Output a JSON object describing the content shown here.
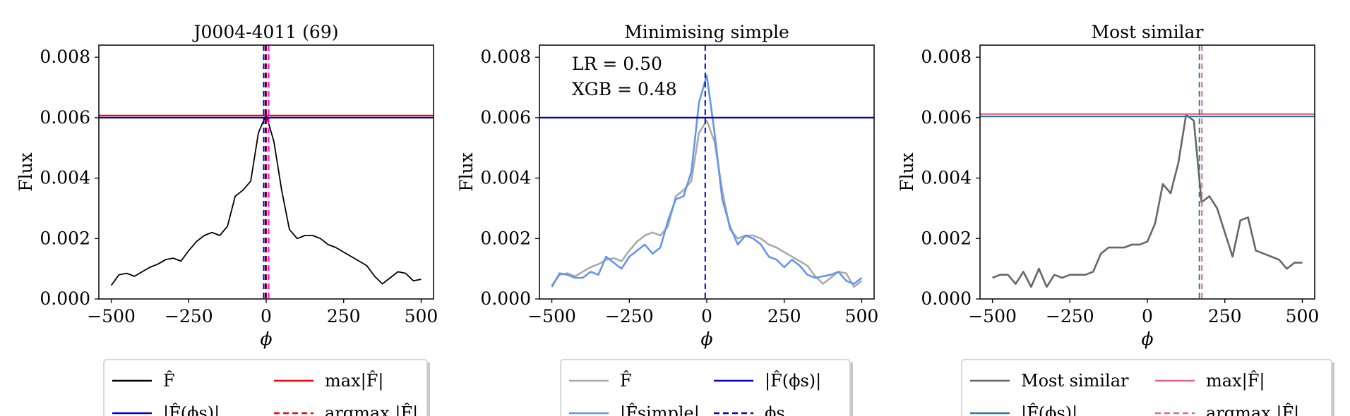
{
  "chart_data": [
    {
      "type": "line",
      "title": "J0004-4011 (69)",
      "xlabel": "ϕ",
      "ylabel": "Flux",
      "xlim": [
        -540,
        540
      ],
      "ylim": [
        0,
        0.0084
      ],
      "xticks": [
        -500,
        -250,
        0,
        250,
        500
      ],
      "xtick_labels": [
        "−500",
        "−250",
        "0",
        "250",
        "500"
      ],
      "yticks": [
        0,
        0.002,
        0.004,
        0.006,
        0.008
      ],
      "ytick_labels": [
        "0.000",
        "0.002",
        "0.004",
        "0.006",
        "0.008"
      ],
      "series": [
        {
          "name": "F̂",
          "style": "solid",
          "color": "#000000",
          "x": [
            -500,
            -475,
            -450,
            -425,
            -400,
            -375,
            -350,
            -325,
            -300,
            -275,
            -250,
            -225,
            -200,
            -175,
            -150,
            -125,
            -100,
            -75,
            -50,
            -25,
            0,
            25,
            50,
            75,
            100,
            125,
            150,
            175,
            200,
            225,
            250,
            275,
            300,
            325,
            350,
            375,
            400,
            425,
            450,
            475,
            500
          ],
          "y": [
            0.00045,
            0.0008,
            0.00085,
            0.00075,
            0.0009,
            0.00105,
            0.00115,
            0.0013,
            0.00135,
            0.00125,
            0.0016,
            0.0019,
            0.0021,
            0.0022,
            0.0021,
            0.0024,
            0.0034,
            0.0036,
            0.0039,
            0.0055,
            0.0061,
            0.0052,
            0.0036,
            0.0023,
            0.002,
            0.0021,
            0.0021,
            0.002,
            0.0018,
            0.0017,
            0.00155,
            0.0014,
            0.00125,
            0.0011,
            0.00075,
            0.0005,
            0.0007,
            0.0009,
            0.00085,
            0.0006,
            0.00065
          ]
        }
      ],
      "hlines": [
        {
          "name": "max|F̂|",
          "y": 0.00607,
          "color": "#ff0000",
          "style": "solid"
        },
        {
          "name": "|F̂(ϕs)|",
          "y": 0.006,
          "color": "#0000cc",
          "style": "solid"
        }
      ],
      "vlines": [
        {
          "name": "argmax |F̂|",
          "x": 0,
          "color": "#ff0000",
          "style": "dashed"
        },
        {
          "name": "ϕs",
          "x": -8,
          "color": "#0000cc",
          "style": "dashed"
        },
        {
          "x": -2,
          "color": "#000000",
          "style": "dashed"
        },
        {
          "x": 8,
          "color": "#ff00ff",
          "style": "dashed"
        }
      ],
      "legend": [
        {
          "label": "F̂",
          "color": "#000000",
          "style": "solid"
        },
        {
          "label": "max|F̂|",
          "color": "#ff0000",
          "style": "solid"
        },
        {
          "label": "|F̂(ϕs)|",
          "color": "#0000cc",
          "style": "solid"
        },
        {
          "label": "argmax |F̂|",
          "color": "#ff0000",
          "style": "dashed"
        }
      ]
    },
    {
      "type": "line",
      "title": "Minimising simple",
      "xlabel": "ϕ",
      "ylabel": "Flux",
      "xlim": [
        -540,
        540
      ],
      "ylim": [
        0,
        0.0084
      ],
      "xticks": [
        -500,
        -250,
        0,
        250,
        500
      ],
      "xtick_labels": [
        "−500",
        "−250",
        "0",
        "250",
        "500"
      ],
      "yticks": [
        0,
        0.002,
        0.004,
        0.006,
        0.008
      ],
      "ytick_labels": [
        "0.000",
        "0.002",
        "0.004",
        "0.006",
        "0.008"
      ],
      "annotations": [
        "LR = 0.50",
        "XGB = 0.48"
      ],
      "series": [
        {
          "name": "F̂",
          "style": "solid",
          "color": "#aaaaaa",
          "x": [
            -500,
            -475,
            -450,
            -425,
            -400,
            -375,
            -350,
            -325,
            -300,
            -275,
            -250,
            -225,
            -200,
            -175,
            -150,
            -125,
            -100,
            -75,
            -50,
            -25,
            0,
            25,
            50,
            75,
            100,
            125,
            150,
            175,
            200,
            225,
            250,
            275,
            300,
            325,
            350,
            375,
            400,
            425,
            450,
            475,
            500
          ],
          "y": [
            0.00045,
            0.0008,
            0.00085,
            0.00075,
            0.0009,
            0.00105,
            0.00115,
            0.0013,
            0.00135,
            0.00125,
            0.0016,
            0.0019,
            0.0021,
            0.0022,
            0.0021,
            0.0024,
            0.0034,
            0.0036,
            0.0039,
            0.0055,
            0.0059,
            0.0052,
            0.0036,
            0.0023,
            0.002,
            0.0021,
            0.0021,
            0.002,
            0.0018,
            0.0017,
            0.00155,
            0.0014,
            0.00125,
            0.0011,
            0.00075,
            0.0005,
            0.0007,
            0.0009,
            0.00085,
            0.0004,
            0.0006
          ]
        },
        {
          "name": "|F̂simple|",
          "style": "solid",
          "color": "#6495ed",
          "x": [
            -500,
            -475,
            -450,
            -425,
            -400,
            -375,
            -350,
            -325,
            -300,
            -275,
            -250,
            -225,
            -200,
            -175,
            -150,
            -125,
            -100,
            -75,
            -50,
            -25,
            0,
            25,
            50,
            75,
            100,
            125,
            150,
            175,
            200,
            225,
            250,
            275,
            300,
            325,
            350,
            375,
            400,
            425,
            450,
            475,
            500
          ],
          "y": [
            0.0004,
            0.00085,
            0.0008,
            0.0007,
            0.0007,
            0.0009,
            0.0008,
            0.0014,
            0.0012,
            0.001,
            0.0014,
            0.0016,
            0.0018,
            0.0015,
            0.0017,
            0.0026,
            0.0033,
            0.0034,
            0.0042,
            0.0065,
            0.0074,
            0.0055,
            0.0033,
            0.0024,
            0.0018,
            0.0021,
            0.002,
            0.0018,
            0.0014,
            0.0013,
            0.00105,
            0.0013,
            0.0011,
            0.0008,
            0.0007,
            0.00075,
            0.0008,
            0.0009,
            0.0006,
            0.0005,
            0.0007
          ]
        }
      ],
      "hlines": [
        {
          "name": "|F̂(ϕs)|",
          "y": 0.006,
          "color": "#0000cc",
          "style": "solid"
        }
      ],
      "vlines": [
        {
          "name": "ϕs",
          "x": -5,
          "color": "#0000cc",
          "style": "dashed"
        }
      ],
      "legend": [
        {
          "label": "F̂",
          "color": "#aaaaaa",
          "style": "solid"
        },
        {
          "label": "|F̂(ϕs)|",
          "color": "#0000cc",
          "style": "solid"
        },
        {
          "label": "|F̂simple|",
          "color": "#6495ed",
          "style": "solid"
        },
        {
          "label": "ϕs",
          "color": "#0000cc",
          "style": "dashed"
        }
      ]
    },
    {
      "type": "line",
      "title": "Most similar",
      "xlabel": "ϕ",
      "ylabel": "Flux",
      "xlim": [
        -540,
        540
      ],
      "ylim": [
        0,
        0.0084
      ],
      "xticks": [
        -500,
        -250,
        0,
        250,
        500
      ],
      "xtick_labels": [
        "−500",
        "−250",
        "0",
        "250",
        "500"
      ],
      "yticks": [
        0,
        0.002,
        0.004,
        0.006,
        0.008
      ],
      "ytick_labels": [
        "0.000",
        "0.002",
        "0.004",
        "0.006",
        "0.008"
      ],
      "series": [
        {
          "name": "Most similar",
          "style": "solid",
          "color": "#666666",
          "x": [
            -500,
            -475,
            -450,
            -425,
            -400,
            -375,
            -350,
            -325,
            -300,
            -275,
            -250,
            -225,
            -200,
            -175,
            -150,
            -125,
            -100,
            -75,
            -50,
            -25,
            0,
            25,
            50,
            75,
            100,
            125,
            150,
            175,
            200,
            225,
            250,
            275,
            300,
            325,
            350,
            375,
            400,
            425,
            450,
            475,
            500
          ],
          "y": [
            0.0007,
            0.0008,
            0.0008,
            0.0005,
            0.0009,
            0.0004,
            0.001,
            0.0004,
            0.0008,
            0.0007,
            0.0008,
            0.0008,
            0.0008,
            0.0009,
            0.0015,
            0.0017,
            0.0017,
            0.0017,
            0.0018,
            0.0018,
            0.0019,
            0.0025,
            0.0038,
            0.0035,
            0.0045,
            0.0061,
            0.0059,
            0.0032,
            0.0034,
            0.003,
            0.0022,
            0.0014,
            0.0026,
            0.0027,
            0.0016,
            0.0015,
            0.0014,
            0.0013,
            0.001,
            0.0012,
            0.0012
          ]
        }
      ],
      "hlines": [
        {
          "name": "max|F̂|",
          "y": 0.00612,
          "color": "#e8658a",
          "style": "solid"
        },
        {
          "name": "|F̂(ϕs)|",
          "y": 0.00604,
          "color": "#2a7a99",
          "style": "solid"
        }
      ],
      "vlines": [
        {
          "name": "argmax |F̂|",
          "x": 176,
          "color": "#e8658a",
          "style": "dashed"
        },
        {
          "x": 168,
          "color": "#2a7a99",
          "style": "dashed"
        }
      ],
      "legend": [
        {
          "label": "Most similar",
          "color": "#666666",
          "style": "solid"
        },
        {
          "label": "max|F̂|",
          "color": "#e8658a",
          "style": "solid"
        },
        {
          "label": "|F̂(ϕs)|",
          "color": "#2a7a99",
          "style": "solid"
        },
        {
          "label": "argmax |F̂|",
          "color": "#e8658a",
          "style": "dashed"
        }
      ]
    }
  ]
}
